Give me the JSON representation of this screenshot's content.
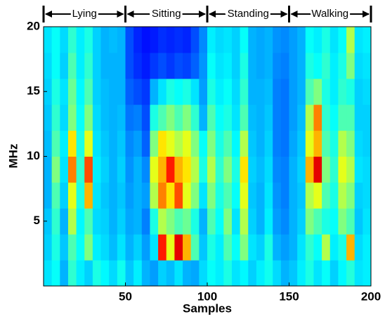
{
  "chart_data": {
    "type": "heatmap",
    "xlabel": "Samples",
    "ylabel": "MHz",
    "xlim": [
      0,
      200
    ],
    "ylim": [
      0,
      20
    ],
    "xticks": [
      50,
      100,
      150,
      200
    ],
    "yticks": [
      5,
      10,
      15,
      20
    ],
    "colormap": "jet",
    "clim": [
      0,
      1
    ],
    "regions": [
      {
        "label": "Lying",
        "start": 0,
        "end": 50
      },
      {
        "label": "Sitting",
        "start": 50,
        "end": 100
      },
      {
        "label": "Standing",
        "start": 100,
        "end": 150
      },
      {
        "label": "Walking",
        "start": 150,
        "end": 200
      }
    ],
    "values": [
      [
        0.35,
        0.38,
        0.3,
        0.42,
        0.36,
        0.33,
        0.4,
        0.37,
        0.34,
        0.39,
        0.32,
        0.36,
        0.3,
        0.28,
        0.33,
        0.31,
        0.35,
        0.3,
        0.29,
        0.34,
        0.38,
        0.36,
        0.4,
        0.35,
        0.37,
        0.33,
        0.36,
        0.39,
        0.34,
        0.3,
        0.32,
        0.36,
        0.4,
        0.35,
        0.38,
        0.33,
        0.37,
        0.41,
        0.35,
        0.36
      ],
      [
        0.33,
        0.4,
        0.32,
        0.45,
        0.38,
        0.5,
        0.36,
        0.34,
        0.31,
        0.35,
        0.3,
        0.33,
        0.28,
        0.35,
        0.85,
        0.6,
        0.9,
        0.7,
        0.45,
        0.32,
        0.4,
        0.36,
        0.45,
        0.38,
        0.5,
        0.35,
        0.33,
        0.4,
        0.3,
        0.28,
        0.3,
        0.35,
        0.42,
        0.38,
        0.55,
        0.36,
        0.4,
        0.7,
        0.34,
        0.36
      ],
      [
        0.32,
        0.42,
        0.3,
        0.55,
        0.37,
        0.45,
        0.34,
        0.33,
        0.3,
        0.33,
        0.29,
        0.3,
        0.25,
        0.4,
        0.55,
        0.5,
        0.45,
        0.48,
        0.4,
        0.3,
        0.45,
        0.38,
        0.5,
        0.35,
        0.55,
        0.33,
        0.3,
        0.36,
        0.28,
        0.26,
        0.3,
        0.33,
        0.5,
        0.45,
        0.4,
        0.38,
        0.5,
        0.45,
        0.32,
        0.35
      ],
      [
        0.3,
        0.45,
        0.33,
        0.6,
        0.4,
        0.7,
        0.35,
        0.32,
        0.3,
        0.32,
        0.28,
        0.3,
        0.28,
        0.55,
        0.75,
        0.65,
        0.8,
        0.6,
        0.5,
        0.35,
        0.5,
        0.4,
        0.45,
        0.38,
        0.6,
        0.32,
        0.3,
        0.35,
        0.27,
        0.25,
        0.3,
        0.32,
        0.55,
        0.6,
        0.45,
        0.4,
        0.55,
        0.5,
        0.33,
        0.34
      ],
      [
        0.3,
        0.5,
        0.35,
        0.75,
        0.42,
        0.8,
        0.36,
        0.33,
        0.3,
        0.33,
        0.27,
        0.3,
        0.26,
        0.6,
        0.7,
        0.85,
        0.7,
        0.65,
        0.55,
        0.4,
        0.55,
        0.42,
        0.5,
        0.4,
        0.65,
        0.33,
        0.31,
        0.34,
        0.26,
        0.25,
        0.3,
        0.33,
        0.7,
        0.9,
        0.5,
        0.42,
        0.6,
        0.55,
        0.35,
        0.34
      ],
      [
        0.31,
        0.45,
        0.36,
        0.65,
        0.4,
        0.6,
        0.35,
        0.32,
        0.3,
        0.32,
        0.26,
        0.28,
        0.22,
        0.5,
        0.65,
        0.6,
        0.55,
        0.6,
        0.5,
        0.38,
        0.5,
        0.4,
        0.45,
        0.37,
        0.55,
        0.32,
        0.3,
        0.33,
        0.25,
        0.24,
        0.29,
        0.32,
        0.6,
        0.7,
        0.45,
        0.4,
        0.55,
        0.5,
        0.34,
        0.33
      ],
      [
        0.32,
        0.42,
        0.34,
        0.5,
        0.38,
        0.5,
        0.34,
        0.31,
        0.3,
        0.31,
        0.24,
        0.25,
        0.2,
        0.4,
        0.45,
        0.5,
        0.45,
        0.5,
        0.42,
        0.3,
        0.45,
        0.38,
        0.4,
        0.35,
        0.45,
        0.31,
        0.3,
        0.32,
        0.25,
        0.24,
        0.28,
        0.31,
        0.55,
        0.75,
        0.42,
        0.38,
        0.45,
        0.45,
        0.33,
        0.33
      ],
      [
        0.33,
        0.4,
        0.35,
        0.48,
        0.37,
        0.45,
        0.33,
        0.31,
        0.3,
        0.3,
        0.22,
        0.2,
        0.18,
        0.3,
        0.35,
        0.4,
        0.38,
        0.4,
        0.35,
        0.28,
        0.4,
        0.36,
        0.38,
        0.34,
        0.42,
        0.3,
        0.3,
        0.31,
        0.25,
        0.24,
        0.28,
        0.3,
        0.45,
        0.5,
        0.4,
        0.36,
        0.42,
        0.4,
        0.33,
        0.34
      ],
      [
        0.34,
        0.38,
        0.33,
        0.45,
        0.36,
        0.42,
        0.33,
        0.3,
        0.3,
        0.3,
        0.2,
        0.17,
        0.15,
        0.18,
        0.2,
        0.18,
        0.2,
        0.19,
        0.22,
        0.27,
        0.38,
        0.35,
        0.36,
        0.33,
        0.4,
        0.3,
        0.29,
        0.3,
        0.26,
        0.25,
        0.28,
        0.3,
        0.4,
        0.38,
        0.42,
        0.36,
        0.4,
        0.5,
        0.34,
        0.35
      ],
      [
        0.35,
        0.38,
        0.34,
        0.42,
        0.36,
        0.4,
        0.33,
        0.3,
        0.31,
        0.3,
        0.2,
        0.16,
        0.14,
        0.15,
        0.17,
        0.16,
        0.17,
        0.16,
        0.2,
        0.26,
        0.36,
        0.34,
        0.35,
        0.33,
        0.38,
        0.3,
        0.29,
        0.3,
        0.27,
        0.26,
        0.28,
        0.3,
        0.38,
        0.36,
        0.4,
        0.35,
        0.38,
        0.55,
        0.35,
        0.36
      ]
    ]
  }
}
